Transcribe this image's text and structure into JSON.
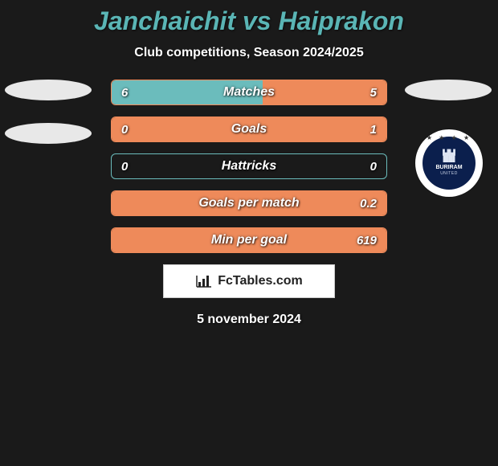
{
  "title": "Janchaichit vs Haiprakon",
  "subtitle": "Club competitions, Season 2024/2025",
  "date": "5 november 2024",
  "brand": "FcTables.com",
  "crest": {
    "name": "BURIRAM",
    "sub": "UNITED"
  },
  "colors": {
    "left_fill": "#6bbcbc",
    "right_fill": "#ee8a5a",
    "row_border": "#ee8a5a",
    "row_empty_border": "#6bbcbc",
    "background": "#1a1a1a"
  },
  "rows": [
    {
      "label": "Matches",
      "left": "6",
      "right": "5",
      "left_pct": 55,
      "right_pct": 45,
      "mode": "split"
    },
    {
      "label": "Goals",
      "left": "0",
      "right": "1",
      "left_pct": 0,
      "right_pct": 100,
      "mode": "right"
    },
    {
      "label": "Hattricks",
      "left": "0",
      "right": "0",
      "left_pct": 0,
      "right_pct": 0,
      "mode": "empty"
    },
    {
      "label": "Goals per match",
      "left": "",
      "right": "0.2",
      "left_pct": 0,
      "right_pct": 100,
      "mode": "right"
    },
    {
      "label": "Min per goal",
      "left": "",
      "right": "619",
      "left_pct": 0,
      "right_pct": 100,
      "mode": "right"
    }
  ]
}
